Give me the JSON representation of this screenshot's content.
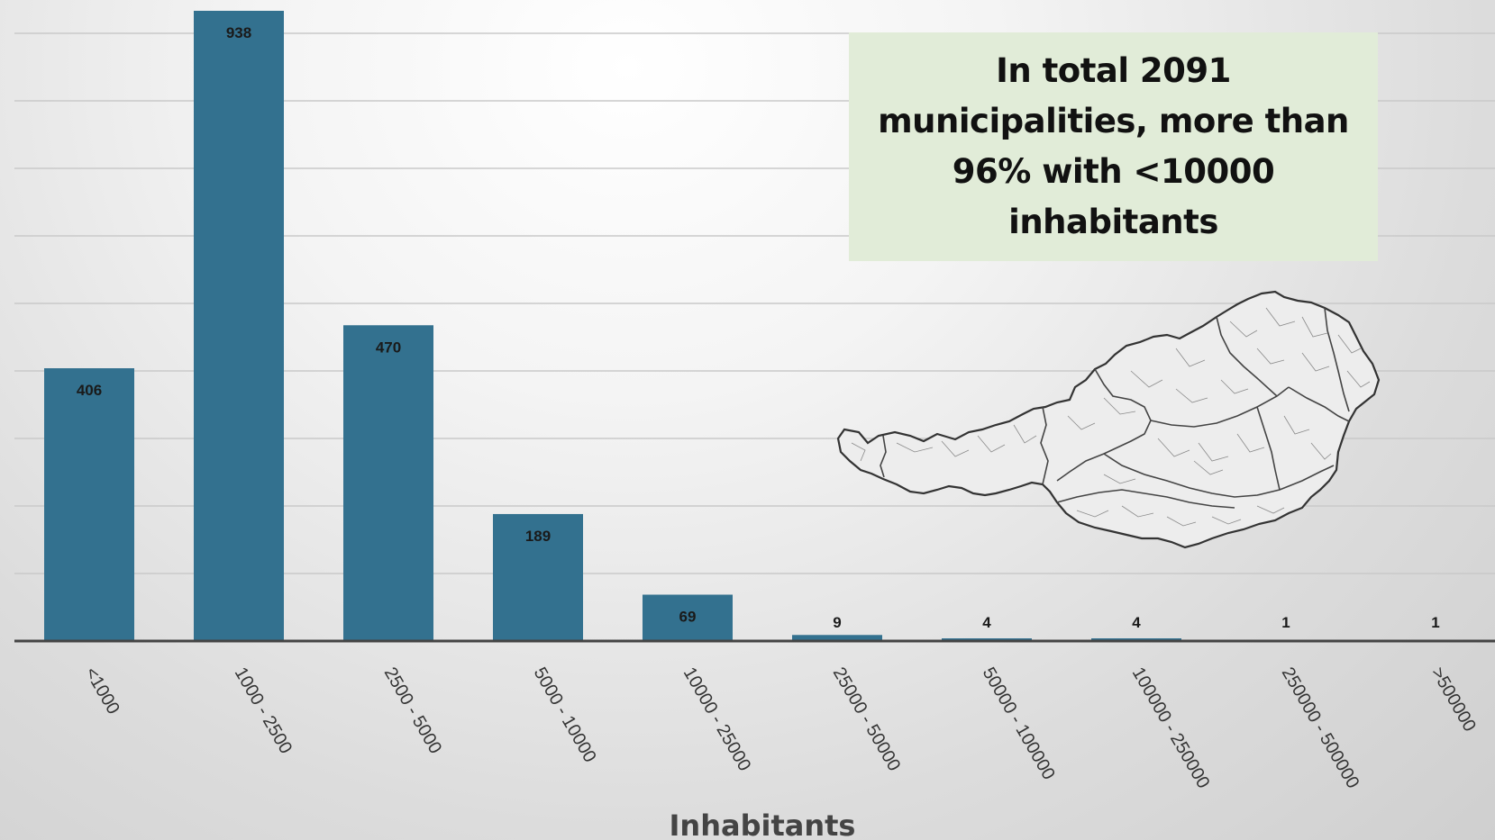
{
  "chart_data": {
    "type": "bar",
    "categories": [
      "<1000",
      "1000 - 2500",
      "2500 - 5000",
      "5000 - 10000",
      "10000 - 25000",
      "25000 - 50000",
      "50000 - 100000",
      "100000 - 250000",
      "250000 - 500000",
      ">500000"
    ],
    "values": [
      406,
      938,
      470,
      189,
      69,
      9,
      4,
      4,
      1,
      1
    ],
    "xlabel": "Inhabitants",
    "ylim": [
      0,
      938
    ],
    "grid": true,
    "bar_color": "#33718f",
    "annotation": "In total 2091 municipalities, more than 96% with <10000 inhabitants"
  },
  "map": {
    "icon": "austria-map-icon",
    "fill": "#ededed",
    "stroke": "#333333"
  }
}
